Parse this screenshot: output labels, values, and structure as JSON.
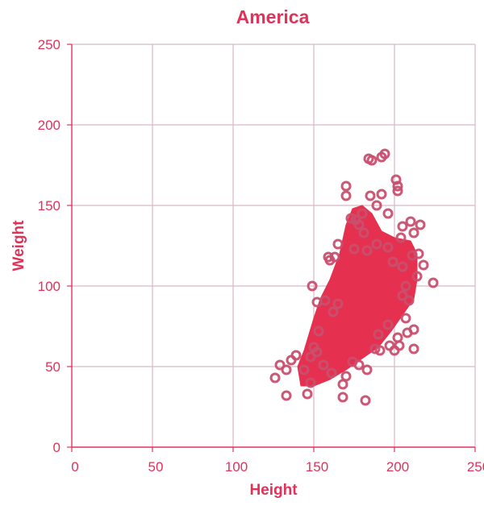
{
  "chart_data": {
    "type": "scatter",
    "title": "America",
    "xlabel": "Height",
    "ylabel": "Weight",
    "xlim": [
      0,
      250
    ],
    "ylim": [
      0,
      250
    ],
    "x_ticks": [
      0,
      50,
      100,
      150,
      200,
      250
    ],
    "y_ticks": [
      0,
      50,
      100,
      150,
      200,
      250
    ],
    "grid": true,
    "colors": {
      "accent": "#e0335a",
      "marker": "#c84f6e",
      "dense": "#e6304f",
      "grid": "#d9b8c6"
    },
    "series": [
      {
        "points": [
          [
            126,
            43
          ],
          [
            129,
            51
          ],
          [
            133,
            32
          ],
          [
            133,
            48
          ],
          [
            136,
            54
          ],
          [
            139,
            57
          ],
          [
            144,
            48
          ],
          [
            146,
            33
          ],
          [
            148,
            40
          ],
          [
            150,
            62
          ],
          [
            152,
            59
          ],
          [
            153,
            72
          ],
          [
            149,
            100
          ],
          [
            152,
            90
          ],
          [
            157,
            91
          ],
          [
            159,
            118
          ],
          [
            160,
            116
          ],
          [
            162,
            84
          ],
          [
            163,
            118
          ],
          [
            165,
            126
          ],
          [
            165,
            89
          ],
          [
            168,
            31
          ],
          [
            168,
            39
          ],
          [
            170,
            44
          ],
          [
            170,
            162
          ],
          [
            170,
            156
          ],
          [
            173,
            142
          ],
          [
            175,
            123
          ],
          [
            176,
            141
          ],
          [
            180,
            145
          ],
          [
            181,
            133
          ],
          [
            182,
            29
          ],
          [
            183,
            48
          ],
          [
            184,
            179
          ],
          [
            185,
            156
          ],
          [
            186,
            178
          ],
          [
            189,
            126
          ],
          [
            189,
            150
          ],
          [
            190,
            70
          ],
          [
            191,
            60
          ],
          [
            192,
            180
          ],
          [
            192,
            157
          ],
          [
            194,
            182
          ],
          [
            196,
            124
          ],
          [
            196,
            76
          ],
          [
            197,
            63
          ],
          [
            199,
            115
          ],
          [
            200,
            60
          ],
          [
            201,
            166
          ],
          [
            202,
            162
          ],
          [
            202,
            159
          ],
          [
            202,
            68
          ],
          [
            203,
            63
          ],
          [
            204,
            130
          ],
          [
            205,
            94
          ],
          [
            205,
            137
          ],
          [
            207,
            100
          ],
          [
            207,
            80
          ],
          [
            208,
            71
          ],
          [
            209,
            91
          ],
          [
            210,
            140
          ],
          [
            211,
            119
          ],
          [
            212,
            61
          ],
          [
            212,
            73
          ],
          [
            212,
            133
          ],
          [
            214,
            106
          ],
          [
            216,
            138
          ],
          [
            218,
            113
          ],
          [
            224,
            102
          ],
          [
            178,
            51
          ],
          [
            174,
            53
          ],
          [
            161,
            46
          ],
          [
            156,
            51
          ],
          [
            148,
            56
          ],
          [
            188,
            61
          ],
          [
            183,
            122
          ],
          [
            178,
            138
          ],
          [
            196,
            145
          ],
          [
            205,
            112
          ],
          [
            215,
            120
          ]
        ],
        "dense_band": [
          [
            142,
            38
          ],
          [
            150,
            38
          ],
          [
            160,
            42
          ],
          [
            170,
            48
          ],
          [
            180,
            55
          ],
          [
            190,
            62
          ],
          [
            198,
            72
          ],
          [
            205,
            82
          ],
          [
            212,
            92
          ],
          [
            214,
            104
          ],
          [
            214,
            120
          ],
          [
            210,
            128
          ],
          [
            200,
            130
          ],
          [
            192,
            134
          ],
          [
            186,
            145
          ],
          [
            180,
            150
          ],
          [
            174,
            148
          ],
          [
            170,
            138
          ],
          [
            166,
            120
          ],
          [
            160,
            104
          ],
          [
            154,
            92
          ],
          [
            150,
            80
          ],
          [
            147,
            70
          ],
          [
            144,
            60
          ],
          [
            140,
            50
          ]
        ]
      }
    ]
  }
}
